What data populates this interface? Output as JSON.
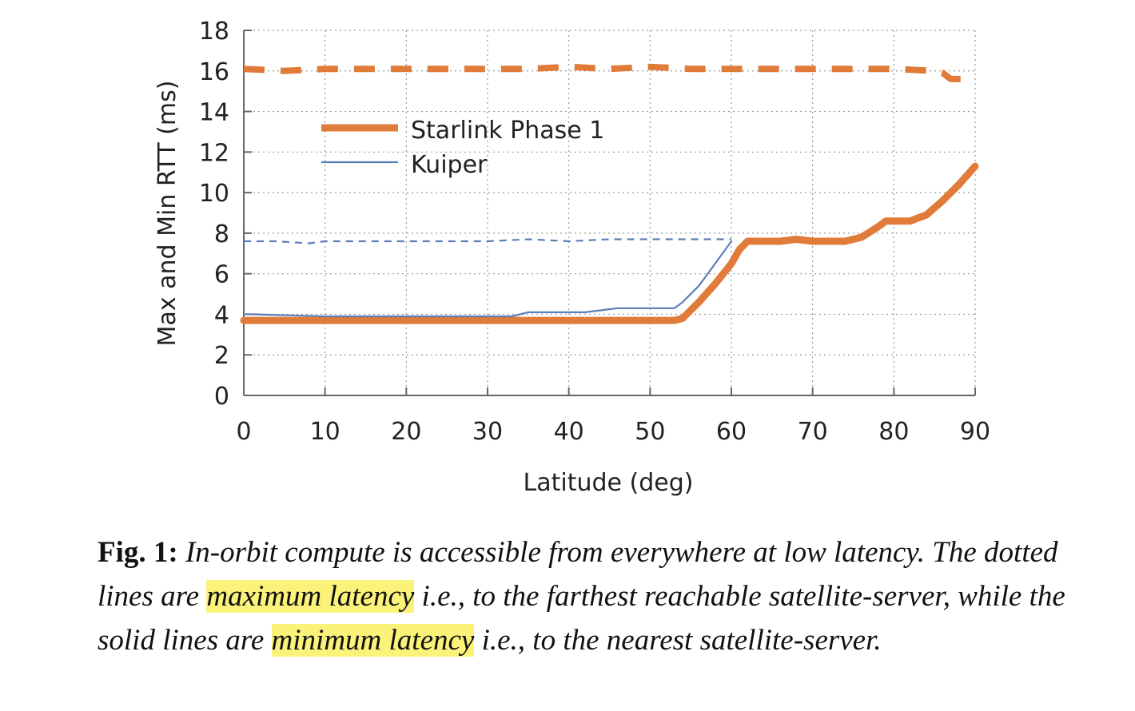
{
  "chart_data": {
    "type": "line",
    "xlabel": "Latitude (deg)",
    "ylabel": "Max and Min RTT (ms)",
    "xlim": [
      0,
      90
    ],
    "ylim": [
      0,
      18
    ],
    "x_ticks": [
      "0",
      "10",
      "20",
      "30",
      "40",
      "50",
      "60",
      "70",
      "80",
      "90"
    ],
    "y_ticks": [
      "0",
      "2",
      "4",
      "6",
      "8",
      "10",
      "12",
      "14",
      "16",
      "18"
    ],
    "grid": true,
    "legend": {
      "placement": "upper-left",
      "entries": [
        "Starlink Phase 1",
        "Kuiper"
      ]
    },
    "series": [
      {
        "name": "Starlink Phase 1",
        "kind": "min",
        "style": "solid",
        "color": "#e07b39",
        "x": [
          0,
          10,
          20,
          30,
          40,
          50,
          53,
          54,
          56,
          58,
          60,
          61,
          62,
          64,
          66,
          68,
          70,
          74,
          76,
          78,
          79,
          82,
          84,
          86,
          88,
          90
        ],
        "y": [
          3.7,
          3.7,
          3.7,
          3.7,
          3.7,
          3.7,
          3.7,
          3.8,
          4.6,
          5.5,
          6.5,
          7.2,
          7.6,
          7.6,
          7.6,
          7.7,
          7.6,
          7.6,
          7.8,
          8.3,
          8.6,
          8.6,
          8.9,
          9.6,
          10.4,
          11.3
        ]
      },
      {
        "name": "Starlink Phase 1",
        "kind": "max",
        "style": "dashed",
        "color": "#e07b39",
        "x": [
          0,
          5,
          10,
          15,
          20,
          25,
          30,
          35,
          40,
          45,
          50,
          55,
          60,
          65,
          70,
          75,
          80,
          85,
          86,
          87,
          88,
          90
        ],
        "y": [
          16.1,
          16.0,
          16.1,
          16.1,
          16.1,
          16.1,
          16.1,
          16.1,
          16.2,
          16.1,
          16.2,
          16.1,
          16.1,
          16.1,
          16.1,
          16.1,
          16.1,
          16.0,
          15.9,
          15.6,
          15.6,
          15.6
        ]
      },
      {
        "name": "Kuiper",
        "kind": "min",
        "style": "solid",
        "color": "#5b7db8",
        "x": [
          0,
          1,
          10,
          20,
          30,
          33,
          35,
          42,
          44,
          46,
          50,
          53,
          54,
          56,
          58,
          60
        ],
        "y": [
          4.0,
          4.0,
          3.9,
          3.9,
          3.9,
          3.9,
          4.1,
          4.1,
          4.2,
          4.3,
          4.3,
          4.3,
          4.6,
          5.4,
          6.5,
          7.6
        ]
      },
      {
        "name": "Kuiper",
        "kind": "max",
        "style": "dashed",
        "color": "#5b7db8",
        "x": [
          0,
          4,
          8,
          10,
          15,
          20,
          25,
          30,
          35,
          40,
          45,
          50,
          55,
          60
        ],
        "y": [
          7.6,
          7.6,
          7.5,
          7.6,
          7.6,
          7.6,
          7.6,
          7.6,
          7.7,
          7.6,
          7.7,
          7.7,
          7.7,
          7.7
        ]
      }
    ]
  },
  "caption": {
    "label": "Fig. 1:",
    "text_1": "In-orbit compute is accessible from everywhere at low latency. The dotted lines are",
    "highlight_1": "maximum latency",
    "text_2": "i.e., to the farthest reachable satellite-server, while the solid lines are",
    "highlight_2": "minimum latency",
    "text_3": "i.e., to the nearest satellite-server.",
    "highlight_color": "#fbf27a"
  }
}
